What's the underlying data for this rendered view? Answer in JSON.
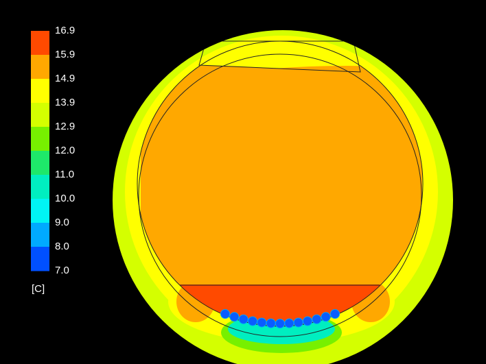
{
  "colorbar": {
    "labels": [
      "16.9",
      "15.9",
      "14.9",
      "13.9",
      "12.9",
      "12.0",
      "11.0",
      "10.0",
      "9.0",
      "8.0",
      "7.0"
    ],
    "colors": [
      "#ff4a00",
      "#ffa800",
      "#ffff00",
      "#d4ff00",
      "#77f000",
      "#1ee86a",
      "#00eec0",
      "#00f4f4",
      "#00aaff",
      "#0050ff"
    ],
    "unit": "[C]"
  }
}
